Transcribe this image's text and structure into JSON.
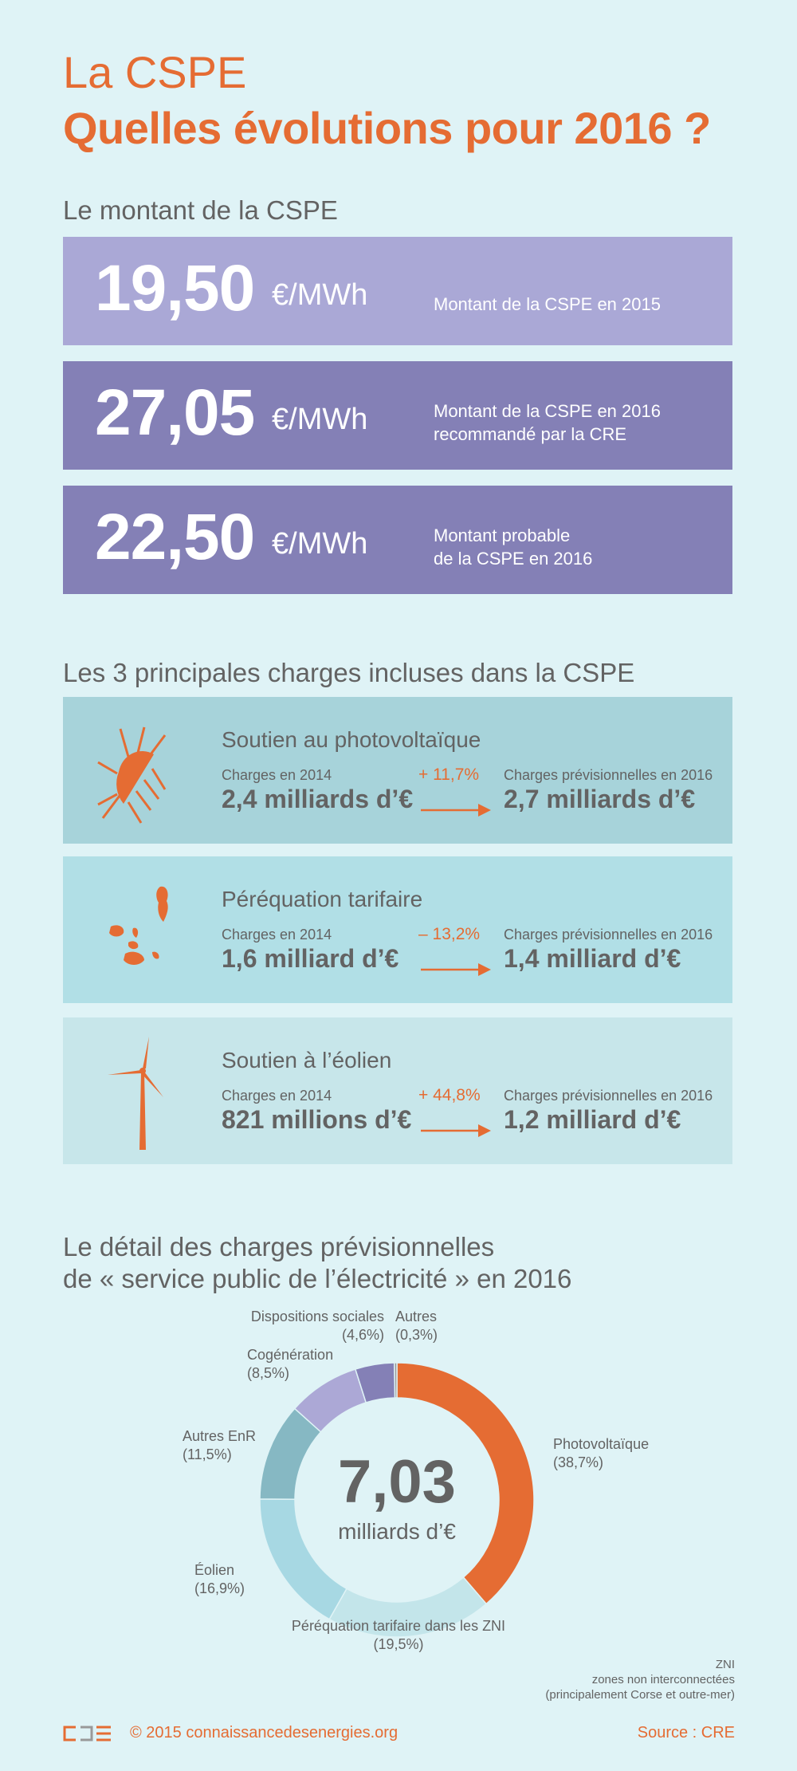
{
  "title": {
    "line1": "La CSPE",
    "line2": "Quelles évolutions pour 2016 ?"
  },
  "montant": {
    "heading": "Le montant de la CSPE",
    "boxes": [
      {
        "value": "19,50",
        "unit": "€/MWh",
        "desc1": "Montant de la CSPE en 2015",
        "desc2": "",
        "color": "#aaa8d6"
      },
      {
        "value": "27,05",
        "unit": "€/MWh",
        "desc1": "Montant de la CSPE en 2016",
        "desc2": "recommandé par la CRE",
        "color": "#8480b6"
      },
      {
        "value": "22,50",
        "unit": "€/MWh",
        "desc1": "Montant probable",
        "desc2": "de la CSPE en 2016",
        "color": "#8480b6"
      }
    ]
  },
  "charges": {
    "heading": "Les 3 principales charges incluses dans la CSPE",
    "cards": [
      {
        "icon": "sun-panel-icon",
        "title": "Soutien au photovoltaïque",
        "label_left": "Charges en 2014",
        "value_left": "2,4 milliards d’€",
        "pct": "+ 11,7%",
        "label_right": "Charges prévisionnelles en 2016",
        "value_right": "2,7 milliards d’€",
        "color": "#a7d3da"
      },
      {
        "icon": "islands-icon",
        "title": "Péréquation tarifaire",
        "label_left": "Charges en 2014",
        "value_left": "1,6 milliard d’€",
        "pct": "– 13,2%",
        "label_right": "Charges prévisionnelles en 2016",
        "value_right": "1,4 milliard d’€",
        "color": "#b1dfe6"
      },
      {
        "icon": "wind-turbine-icon",
        "title": "Soutien à l’éolien",
        "label_left": "Charges en 2014",
        "value_left": "821 millions d’€",
        "pct": "+ 44,8%",
        "label_right": "Charges prévisionnelles en 2016",
        "value_right": "1,2 milliard d’€",
        "color": "#c7e6ea"
      }
    ]
  },
  "detail": {
    "heading1": "Le détail des charges prévisionnelles",
    "heading2": "de « service public de l’électricité » en 2016",
    "total": "7,03",
    "total_unit": "milliards d’€",
    "note": {
      "l1": "ZNI",
      "l2": "zones non interconnectées",
      "l3": "(principalement Corse et outre-mer)"
    }
  },
  "chart_data": {
    "type": "pie",
    "title": "Le détail des charges prévisionnelles de « service public de l’électricité » en 2016",
    "center_label": "7,03 milliards d’€",
    "slices": [
      {
        "name": "Photovoltaïque",
        "pct_label": "(38,7%)",
        "value": 38.7,
        "color": "#e56c33"
      },
      {
        "name": "Péréquation tarifaire dans les ZNI",
        "pct_label": "(19,5%)",
        "value": 19.5,
        "color": "#c3e5ea"
      },
      {
        "name": "Éolien",
        "pct_label": "(16,9%)",
        "value": 16.9,
        "color": "#a7d8e3"
      },
      {
        "name": "Autres EnR",
        "pct_label": "(11,5%)",
        "value": 11.5,
        "color": "#86b8c3"
      },
      {
        "name": "Cogénération",
        "pct_label": "(8,5%)",
        "value": 8.5,
        "color": "#aca8d6"
      },
      {
        "name": "Dispositions sociales",
        "pct_label": "(4,6%)",
        "value": 4.6,
        "color": "#8480b6"
      },
      {
        "name": "Autres",
        "pct_label": "(0,3%)",
        "value": 0.3,
        "color": "#999999"
      }
    ]
  },
  "footer": {
    "copyright": "© 2015 connaissancedesenergies.org",
    "source": "Source : CRE"
  }
}
